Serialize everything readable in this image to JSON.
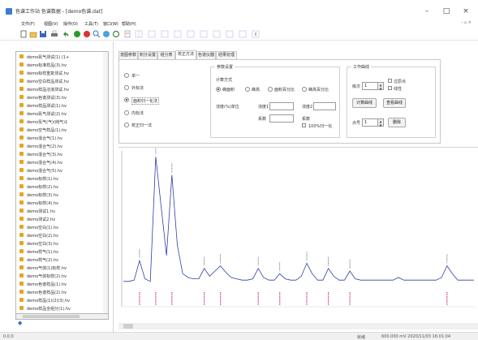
{
  "window": {
    "title": "色谱工作站 色谱数据 - [demo色谱.dat]",
    "minimize": "–",
    "maximize": "□",
    "close": "×"
  },
  "menu": {
    "items": [
      "文件(F)",
      "视图(V)",
      "操作(O)",
      "工具(T)",
      "窗口(W)",
      "帮助(H)"
    ],
    "right_controls": "– ▫ ×"
  },
  "toolbar": {
    "buttons": [
      "new-icon",
      "open-icon",
      "save-icon",
      "print-icon",
      "undo-icon",
      "run-icon",
      "stop-icon",
      "zoom-icon",
      "integrate-icon",
      "refresh-icon",
      "report-icon",
      "grid-icon",
      "calibrate-icon",
      "peak-icon",
      "baseline-icon",
      "table-icon",
      "overlay-icon",
      "export-icon",
      "settings-icon",
      "info-icon",
      "help-icon"
    ]
  },
  "file_tree": {
    "items": [
      "demo氮气测试(1) (1+",
      "demo标准样品(3).hv",
      "demo标样重复测试.hv",
      "demo空白样品测试.hv",
      "demo样品溶液测试.hv",
      "demo色谱测试(3).hv",
      "demo样品测试(1).hv",
      "demo氮气测试(2).hv",
      "demo氢气(气)(纯气)1",
      "demo空气样品(1).hv",
      "demo混合气(1).hv",
      "demo混合气(2).hv",
      "demo混合气(3).hv",
      "demo混合气(4).hv",
      "demo混合气(5).hv",
      "demo标样(1).hv",
      "demo标样(2).hv",
      "demo标样(3).hv",
      "demo标样(4).hv",
      "demo测试1.hv",
      "demo测试2.hv",
      "demo空白(1).hv",
      "demo空白(2).hv",
      "demo空白(3).hv",
      "demo样气(1).hv",
      "demo样气(2).hv",
      "demo气体(1)标样.hv",
      "demo气体标样(2).hv",
      "demo色谱样品(1).hv",
      "demo色谱样品(2).hv",
      "demo样品(1)(2)(3).hv",
      "demo样品全组分(1).hv"
    ],
    "footer_label": "◆"
  },
  "tabs": {
    "items": [
      "谱图参数",
      "积分设置",
      "组分表",
      "校正方法",
      "色谱仪器",
      "结果处理"
    ],
    "active_index": 3
  },
  "settings": {
    "left_options": [
      "单一",
      "外标法",
      "面积归一化法",
      "内标法",
      "校正归一法"
    ],
    "left_selected": 2,
    "group_title": "参数设置",
    "calc_title": "计算方式",
    "calc_options": [
      "峰面积",
      "峰高",
      "面积百分比",
      "峰高百分比"
    ],
    "calc_selected": 0,
    "row1_label": "浓度(%)单位",
    "row1_field_a_label": "浓度1",
    "row1_field_b_label": "浓度2",
    "row2_field_a_label": "系数",
    "row2_field_b_label": "系数",
    "row2_check_label": "100%归一化",
    "right_group_title": "工作曲线",
    "level_label": "级次",
    "level_value": "1",
    "check_a": "过原点",
    "check_b": "线性",
    "btn_calc": "计算曲线",
    "btn_view": "查看曲线",
    "point_label": "点号",
    "point_value": "1",
    "btn_delete": "删除"
  },
  "chart_data": {
    "type": "line",
    "title": "",
    "xlabel": "",
    "ylabel": "",
    "x": [
      0.0,
      0.2,
      0.4,
      0.6,
      0.8,
      1.0,
      1.2,
      1.4,
      1.6,
      1.8,
      2.0,
      2.2,
      2.4,
      2.6,
      2.8,
      3.0,
      3.2,
      3.4,
      3.6,
      3.8,
      4.0,
      4.2,
      4.4,
      4.6,
      4.8,
      5.0,
      5.2,
      5.4,
      5.6,
      5.8,
      6.0,
      6.2,
      6.4,
      6.6,
      6.8,
      7.0,
      7.2,
      7.4,
      7.6,
      7.8,
      8.0,
      8.2,
      8.4,
      8.6,
      8.8,
      9.0,
      9.2,
      9.4,
      9.6,
      9.8,
      10.0,
      10.2,
      10.4,
      10.6,
      10.8,
      11.0,
      11.2,
      11.4,
      11.6,
      11.8,
      12.0,
      12.2,
      12.4,
      12.6,
      12.8,
      13.0
    ],
    "series": [
      {
        "values": [
          2,
          2,
          3,
          18,
          4,
          2,
          98,
          60,
          22,
          84,
          30,
          8,
          5,
          4,
          4,
          12,
          6,
          10,
          14,
          9,
          5,
          4,
          3,
          3,
          4,
          12,
          5,
          3,
          3,
          8,
          4,
          3,
          3,
          6,
          16,
          8,
          3,
          3,
          12,
          6,
          3,
          3,
          10,
          4,
          3,
          3,
          3,
          3,
          3,
          3,
          3,
          5,
          3,
          3,
          3,
          3,
          3,
          3,
          3,
          5,
          14,
          8,
          3,
          3,
          3,
          3
        ]
      }
    ],
    "ylim": [
      0,
      100
    ],
    "grid": false
  },
  "status": {
    "left": "0.0.0",
    "right": "就绪",
    "info": "600.000 mV  2020/11/03 16:01:04"
  }
}
